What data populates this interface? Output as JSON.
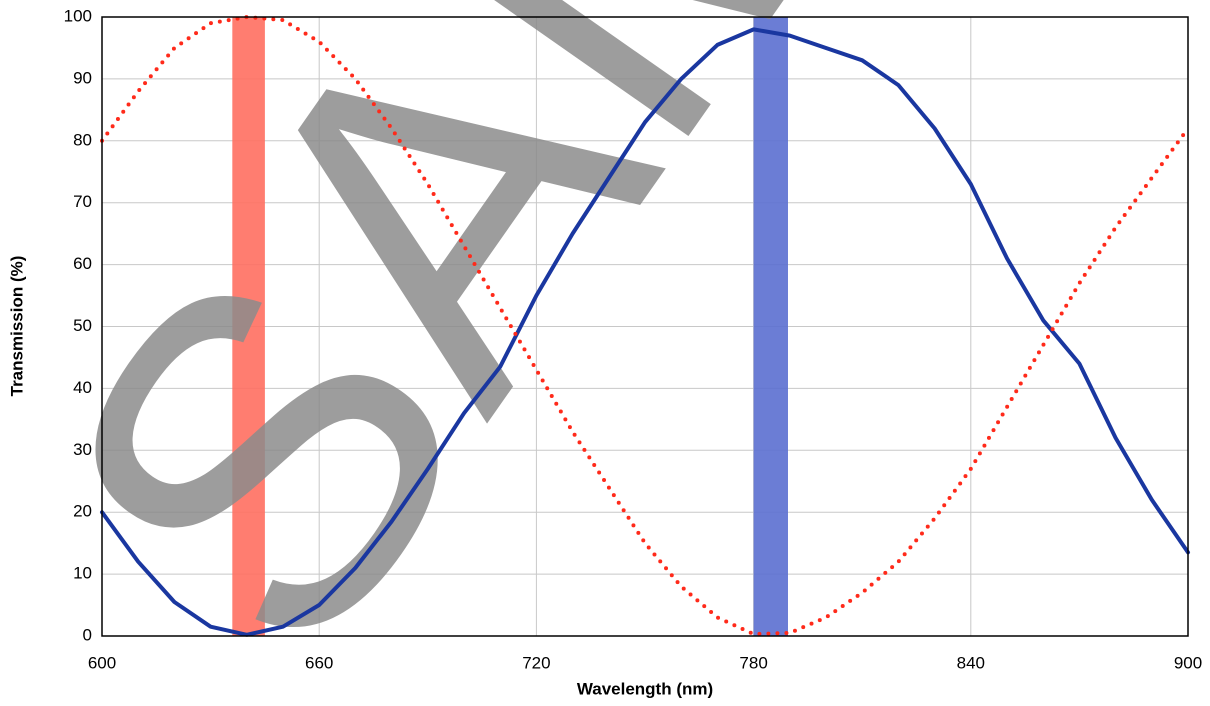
{
  "chart_data": {
    "type": "line",
    "xlabel": "Wavelength (nm)",
    "ylabel": "Transmission (%)",
    "watermark": "SAMPLE",
    "x": [
      600,
      610,
      620,
      630,
      640,
      650,
      660,
      670,
      680,
      690,
      700,
      710,
      720,
      730,
      740,
      750,
      760,
      770,
      780,
      790,
      800,
      810,
      820,
      830,
      840,
      850,
      860,
      870,
      880,
      890,
      900
    ],
    "series": [
      {
        "color": "#1a37a0",
        "style": "solid",
        "values": [
          20,
          12,
          5.5,
          1.5,
          0.2,
          1.5,
          5,
          11,
          18.5,
          27,
          36,
          43.5,
          55,
          65,
          74,
          83,
          90,
          95.5,
          98,
          97,
          95,
          93,
          89,
          82,
          73,
          61,
          51,
          44,
          32,
          22,
          13.5
        ]
      },
      {
        "color": "#ff2a1a",
        "style": "dotted",
        "values": [
          80,
          88,
          95,
          99,
          100,
          99.5,
          96,
          90,
          82,
          73,
          63,
          53,
          43,
          33,
          24,
          15,
          8,
          3,
          0.3,
          0.5,
          3,
          7,
          12,
          19,
          27,
          37,
          47,
          57,
          66,
          74,
          82
        ]
      }
    ],
    "bands": [
      {
        "xlim": [
          636,
          645
        ],
        "color": "#ff6f61"
      },
      {
        "xlim": [
          780,
          789.5
        ],
        "color": "#5b6fd0"
      }
    ],
    "xlim": [
      600,
      900
    ],
    "xticks": [
      600,
      660,
      720,
      780,
      840,
      900
    ],
    "ylim": [
      0,
      100
    ],
    "yticks": [
      0,
      10,
      20,
      30,
      40,
      50,
      60,
      70,
      80,
      90,
      100
    ],
    "grid": true
  }
}
